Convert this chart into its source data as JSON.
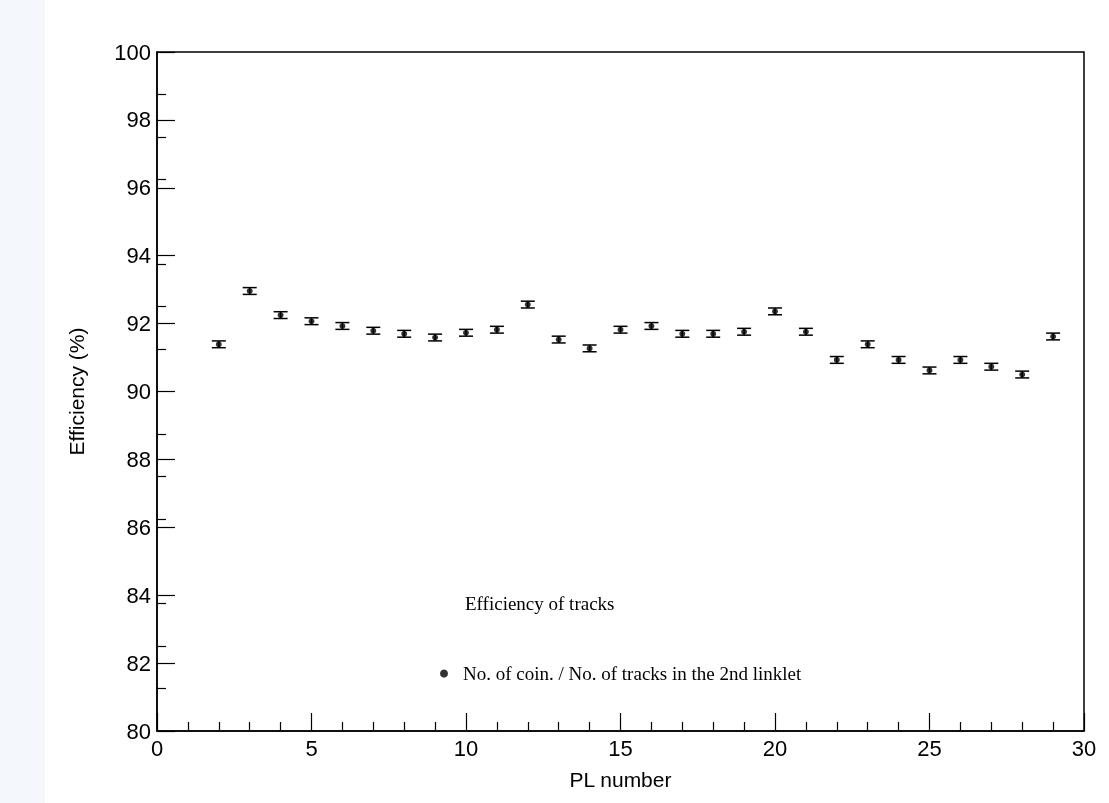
{
  "chart_data": {
    "type": "scatter",
    "xlabel": "PL number",
    "ylabel": "Efficiency (%)",
    "legend_title": "Efficiency of tracks",
    "x": [
      2,
      3,
      4,
      5,
      6,
      7,
      8,
      9,
      10,
      11,
      12,
      13,
      14,
      15,
      16,
      17,
      18,
      19,
      20,
      21,
      22,
      23,
      24,
      25,
      26,
      27,
      28,
      29
    ],
    "series": [
      {
        "name": "No. of coin. / No. of tracks in the 2nd linklet",
        "color": "#000000",
        "values": [
          91.39,
          92.96,
          92.25,
          92.07,
          91.93,
          91.79,
          91.7,
          91.59,
          91.73,
          91.82,
          92.56,
          91.53,
          91.27,
          91.82,
          91.93,
          91.7,
          91.7,
          91.76,
          92.36,
          91.76,
          90.93,
          91.39,
          90.93,
          90.62,
          90.93,
          90.73,
          90.5,
          91.62
        ],
        "errors": [
          0.1,
          0.1,
          0.1,
          0.1,
          0.1,
          0.1,
          0.1,
          0.1,
          0.1,
          0.1,
          0.1,
          0.1,
          0.1,
          0.1,
          0.1,
          0.1,
          0.1,
          0.1,
          0.1,
          0.1,
          0.1,
          0.1,
          0.1,
          0.1,
          0.1,
          0.1,
          0.1,
          0.1
        ]
      }
    ],
    "xlim": [
      0,
      30
    ],
    "xticks": [
      0,
      5,
      10,
      15,
      20,
      25,
      30
    ],
    "ylim": [
      80,
      100
    ],
    "yticks": [
      80,
      82,
      84,
      86,
      88,
      90,
      92,
      94,
      96,
      98,
      100
    ],
    "grid": false,
    "legend": "bottom",
    "marker": "circle"
  }
}
